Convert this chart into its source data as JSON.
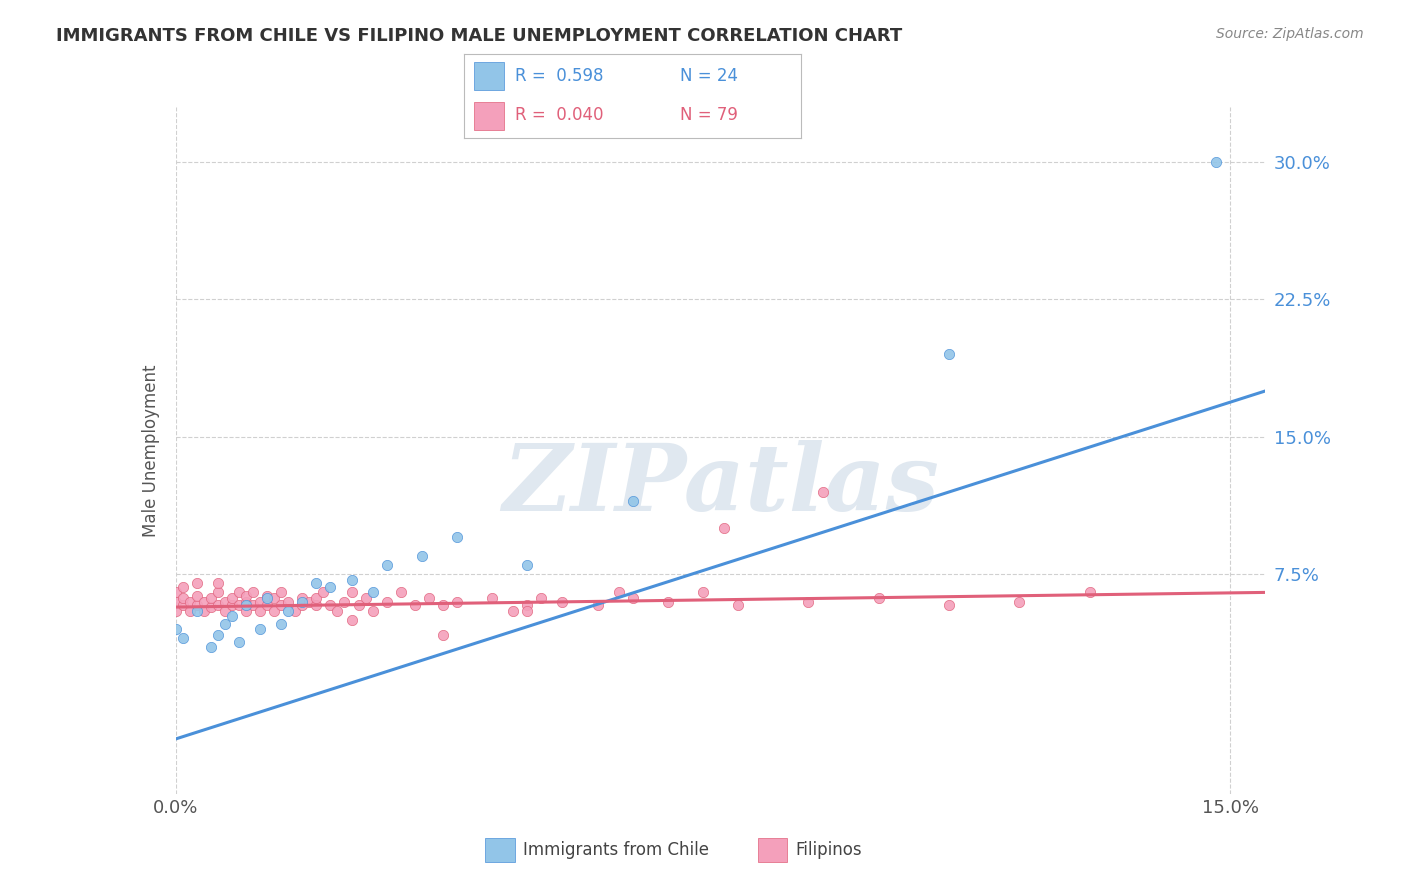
{
  "title": "IMMIGRANTS FROM CHILE VS FILIPINO MALE UNEMPLOYMENT CORRELATION CHART",
  "source": "Source: ZipAtlas.com",
  "ylabel": "Male Unemployment",
  "watermark": "ZIPatlas",
  "chile_color": "#92c5e8",
  "chile_line_color": "#4a90d9",
  "filipino_color": "#f4a0bb",
  "filipino_line_color": "#e0607a",
  "bg_color": "#ffffff",
  "grid_color": "#d0d0d0",
  "watermark_color": "#e0e8f0",
  "xlim": [
    0.0,
    0.155
  ],
  "ylim": [
    -0.045,
    0.33
  ],
  "yticks": [
    0.0,
    0.075,
    0.15,
    0.225,
    0.3
  ],
  "xticks": [
    0.0,
    0.15
  ],
  "chile_scatter_x": [
    0.0,
    0.001,
    0.003,
    0.005,
    0.006,
    0.007,
    0.008,
    0.009,
    0.01,
    0.012,
    0.013,
    0.015,
    0.016,
    0.018,
    0.02,
    0.022,
    0.025,
    0.028,
    0.03,
    0.035,
    0.04,
    0.05,
    0.065,
    0.11,
    0.148
  ],
  "chile_scatter_y": [
    0.045,
    0.04,
    0.055,
    0.035,
    0.042,
    0.048,
    0.052,
    0.038,
    0.058,
    0.045,
    0.062,
    0.048,
    0.055,
    0.06,
    0.07,
    0.068,
    0.072,
    0.065,
    0.08,
    0.085,
    0.095,
    0.08,
    0.115,
    0.195,
    0.3
  ],
  "filipino_scatter_x": [
    0.0,
    0.0,
    0.0,
    0.001,
    0.001,
    0.001,
    0.002,
    0.002,
    0.003,
    0.003,
    0.003,
    0.004,
    0.004,
    0.005,
    0.005,
    0.006,
    0.006,
    0.006,
    0.007,
    0.007,
    0.008,
    0.008,
    0.009,
    0.009,
    0.01,
    0.01,
    0.01,
    0.011,
    0.011,
    0.012,
    0.012,
    0.013,
    0.013,
    0.014,
    0.014,
    0.015,
    0.015,
    0.016,
    0.017,
    0.018,
    0.018,
    0.019,
    0.02,
    0.02,
    0.021,
    0.022,
    0.023,
    0.024,
    0.025,
    0.026,
    0.027,
    0.028,
    0.03,
    0.032,
    0.034,
    0.036,
    0.038,
    0.04,
    0.045,
    0.048,
    0.05,
    0.052,
    0.055,
    0.06,
    0.065,
    0.07,
    0.075,
    0.08,
    0.09,
    0.1,
    0.11,
    0.12,
    0.13,
    0.092,
    0.078,
    0.063,
    0.05,
    0.038,
    0.025
  ],
  "filipino_scatter_y": [
    0.055,
    0.06,
    0.065,
    0.058,
    0.062,
    0.068,
    0.055,
    0.06,
    0.058,
    0.063,
    0.07,
    0.055,
    0.06,
    0.057,
    0.062,
    0.058,
    0.065,
    0.07,
    0.06,
    0.055,
    0.058,
    0.062,
    0.065,
    0.058,
    0.06,
    0.055,
    0.063,
    0.058,
    0.065,
    0.06,
    0.055,
    0.058,
    0.063,
    0.055,
    0.062,
    0.058,
    0.065,
    0.06,
    0.055,
    0.058,
    0.062,
    0.06,
    0.058,
    0.062,
    0.065,
    0.058,
    0.055,
    0.06,
    0.065,
    0.058,
    0.062,
    0.055,
    0.06,
    0.065,
    0.058,
    0.062,
    0.058,
    0.06,
    0.062,
    0.055,
    0.058,
    0.062,
    0.06,
    0.058,
    0.062,
    0.06,
    0.065,
    0.058,
    0.06,
    0.062,
    0.058,
    0.06,
    0.065,
    0.12,
    0.1,
    0.065,
    0.055,
    0.042,
    0.05
  ],
  "chile_line_x": [
    0.0,
    0.155
  ],
  "chile_line_y": [
    -0.015,
    0.175
  ],
  "filipino_line_x": [
    0.0,
    0.155
  ],
  "filipino_line_y": [
    0.057,
    0.065
  ]
}
